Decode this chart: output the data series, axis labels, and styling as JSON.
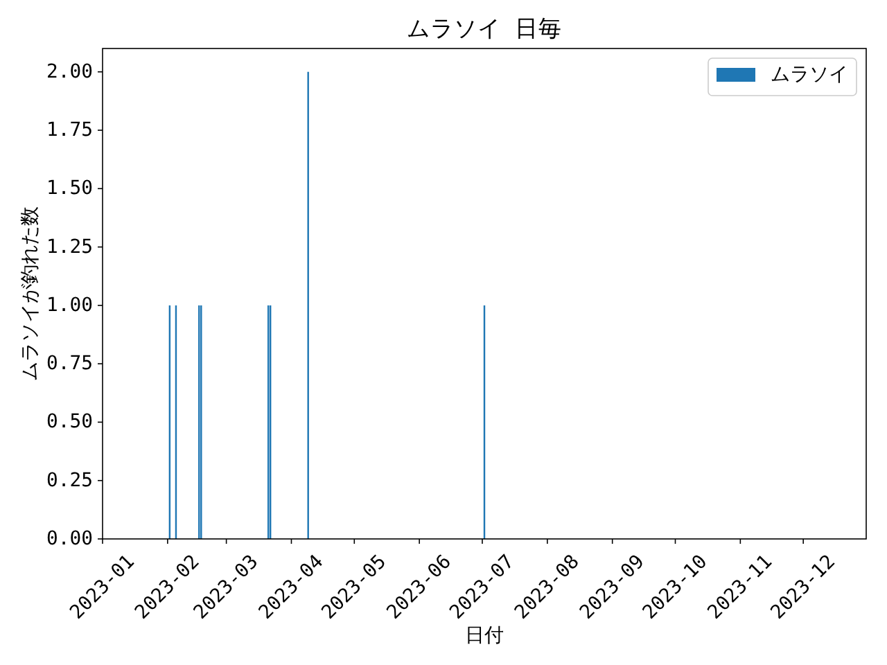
{
  "chart_data": {
    "type": "bar",
    "title": "ムラソイ 日毎",
    "xlabel": "日付",
    "ylabel": "ムラソイが釣れた数",
    "x": [
      "2023-02-02",
      "2023-02-05",
      "2023-02-16",
      "2023-02-17",
      "2023-03-21",
      "2023-03-22",
      "2023-04-09",
      "2023-07-02"
    ],
    "series": [
      {
        "name": "ムラソイ",
        "color": "#1f77b4",
        "values": [
          1,
          1,
          1,
          1,
          1,
          1,
          2,
          1
        ]
      }
    ],
    "xlim": [
      "2023-01-01",
      "2023-12-31"
    ],
    "xticks": [
      "2023-01",
      "2023-02",
      "2023-03",
      "2023-04",
      "2023-05",
      "2023-06",
      "2023-07",
      "2023-08",
      "2023-09",
      "2023-10",
      "2023-11",
      "2023-12"
    ],
    "ylim": [
      0,
      2.1
    ],
    "yticks": [
      {
        "value": 0,
        "label": "0.00"
      },
      {
        "value": 0.25,
        "label": "0.25"
      },
      {
        "value": 0.5,
        "label": "0.50"
      },
      {
        "value": 0.75,
        "label": "0.75"
      },
      {
        "value": 1,
        "label": "1.00"
      },
      {
        "value": 1.25,
        "label": "1.25"
      },
      {
        "value": 1.5,
        "label": "1.50"
      },
      {
        "value": 1.75,
        "label": "1.75"
      },
      {
        "value": 2,
        "label": "2.00"
      }
    ],
    "legend": "top right",
    "grid": false
  }
}
